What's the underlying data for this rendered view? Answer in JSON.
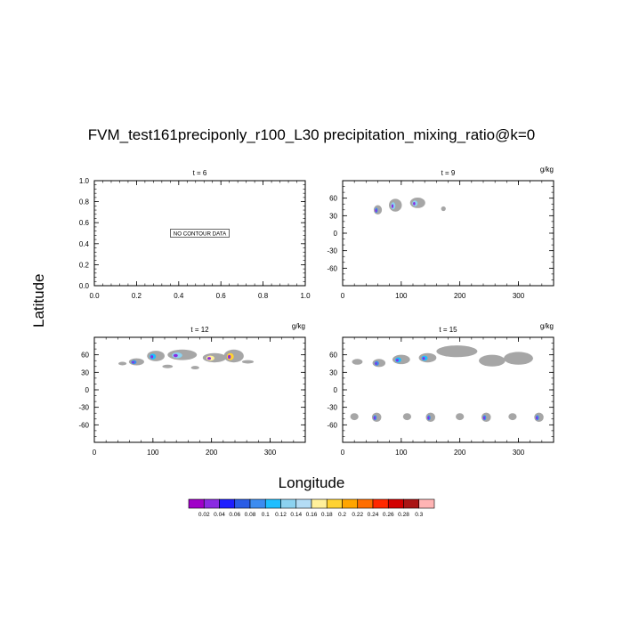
{
  "chart_data": {
    "title": "FVM_test161preciponly_r100_L30 precipitation_mixing_ratio@k=0",
    "xlabel": "Longitude",
    "ylabel": "Latitude",
    "type": "heatmap",
    "panels": [
      {
        "id": "p1",
        "label": "t = 6",
        "units": "",
        "xlim": [
          0,
          1
        ],
        "ylim": [
          0,
          1
        ],
        "xticks": [
          0.0,
          0.2,
          0.4,
          0.6,
          0.8,
          1.0
        ],
        "xticklabels": [
          "0.0",
          "0.2",
          "0.4",
          "0.6",
          "0.8",
          "1.0"
        ],
        "yticks": [
          0.0,
          0.2,
          0.4,
          0.6,
          0.8,
          1.0
        ],
        "yticklabels": [
          "0.0",
          "0.2",
          "0.4",
          "0.6",
          "0.8",
          "1.0"
        ],
        "no_data_text": "NO CONTOUR DATA",
        "features": []
      },
      {
        "id": "p2",
        "label": "t = 9",
        "units": "g/kg",
        "xlim": [
          0,
          360
        ],
        "ylim": [
          -90,
          90
        ],
        "xticks": [
          0,
          100,
          200,
          300
        ],
        "xticklabels": [
          "0",
          "100",
          "200",
          "300"
        ],
        "yticks": [
          60,
          30,
          0,
          -30,
          -60
        ],
        "yticklabels": [
          "60",
          "30",
          "0",
          "-30",
          "-60"
        ],
        "features": [
          {
            "lon": 60,
            "lat": 40,
            "w": 14,
            "h": 16,
            "level": 4
          },
          {
            "lon": 90,
            "lat": 48,
            "w": 22,
            "h": 22,
            "level": 6
          },
          {
            "lon": 128,
            "lat": 52,
            "w": 26,
            "h": 18,
            "level": 6
          },
          {
            "lon": 172,
            "lat": 42,
            "w": 8,
            "h": 8,
            "level": 0
          }
        ]
      },
      {
        "id": "p3",
        "label": "t = 12",
        "units": "g/kg",
        "xlim": [
          0,
          360
        ],
        "ylim": [
          -90,
          90
        ],
        "xticks": [
          0,
          100,
          200,
          300
        ],
        "xticklabels": [
          "0",
          "100",
          "200",
          "300"
        ],
        "yticks": [
          60,
          30,
          0,
          -30,
          -60
        ],
        "yticklabels": [
          "60",
          "30",
          "0",
          "-30",
          "-60"
        ],
        "features": [
          {
            "lon": 48,
            "lat": 45,
            "w": 14,
            "h": 6,
            "level": 0
          },
          {
            "lon": 72,
            "lat": 48,
            "w": 26,
            "h": 12,
            "level": 4
          },
          {
            "lon": 105,
            "lat": 58,
            "w": 30,
            "h": 18,
            "level": 5
          },
          {
            "lon": 150,
            "lat": 60,
            "w": 50,
            "h": 18,
            "level": 6
          },
          {
            "lon": 205,
            "lat": 55,
            "w": 40,
            "h": 16,
            "level": 8
          },
          {
            "lon": 238,
            "lat": 58,
            "w": 34,
            "h": 22,
            "level": 9
          },
          {
            "lon": 262,
            "lat": 48,
            "w": 20,
            "h": 6,
            "level": 0
          },
          {
            "lon": 125,
            "lat": 40,
            "w": 18,
            "h": 6,
            "level": 0
          },
          {
            "lon": 172,
            "lat": 38,
            "w": 14,
            "h": 6,
            "level": 0
          }
        ]
      },
      {
        "id": "p4",
        "label": "t = 15",
        "units": "g/kg",
        "xlim": [
          0,
          360
        ],
        "ylim": [
          -90,
          90
        ],
        "xticks": [
          0,
          100,
          200,
          300
        ],
        "xticklabels": [
          "0",
          "100",
          "200",
          "300"
        ],
        "yticks": [
          60,
          30,
          0,
          -30,
          -60
        ],
        "yticklabels": [
          "60",
          "30",
          "0",
          "-30",
          "-60"
        ],
        "features": [
          {
            "lon": 25,
            "lat": 48,
            "w": 18,
            "h": 10,
            "level": 0
          },
          {
            "lon": 62,
            "lat": 46,
            "w": 22,
            "h": 14,
            "level": 4
          },
          {
            "lon": 100,
            "lat": 52,
            "w": 30,
            "h": 16,
            "level": 5
          },
          {
            "lon": 145,
            "lat": 55,
            "w": 30,
            "h": 16,
            "level": 5
          },
          {
            "lon": 195,
            "lat": 66,
            "w": 70,
            "h": 20,
            "level": 0
          },
          {
            "lon": 255,
            "lat": 50,
            "w": 45,
            "h": 20,
            "level": 0
          },
          {
            "lon": 300,
            "lat": 54,
            "w": 50,
            "h": 22,
            "level": 0
          },
          {
            "lon": 20,
            "lat": -46,
            "w": 14,
            "h": 12,
            "level": 0
          },
          {
            "lon": 58,
            "lat": -47,
            "w": 16,
            "h": 16,
            "level": 4
          },
          {
            "lon": 110,
            "lat": -46,
            "w": 14,
            "h": 12,
            "level": 0
          },
          {
            "lon": 150,
            "lat": -47,
            "w": 16,
            "h": 16,
            "level": 4
          },
          {
            "lon": 200,
            "lat": -46,
            "w": 14,
            "h": 12,
            "level": 0
          },
          {
            "lon": 245,
            "lat": -47,
            "w": 16,
            "h": 16,
            "level": 4
          },
          {
            "lon": 290,
            "lat": -46,
            "w": 14,
            "h": 12,
            "level": 0
          },
          {
            "lon": 335,
            "lat": -47,
            "w": 16,
            "h": 16,
            "level": 4
          }
        ]
      }
    ],
    "colorbar": {
      "labels": [
        "0.02",
        "0.04",
        "0.06",
        "0.08",
        "0.1",
        "0.12",
        "0.14",
        "0.16",
        "0.18",
        "0.2",
        "0.22",
        "0.24",
        "0.26",
        "0.28",
        "0.3"
      ],
      "colors": [
        "#a000c8",
        "#8a2be2",
        "#1e1eff",
        "#2a5ce6",
        "#3c8cf0",
        "#1ebeff",
        "#8cd2f0",
        "#b4dcf5",
        "#fff09b",
        "#ffd232",
        "#ffa500",
        "#ff6e00",
        "#ff2800",
        "#d20000",
        "#aa1414",
        "#ffb4b4"
      ],
      "below_min_color": "#a6a6a6"
    }
  }
}
